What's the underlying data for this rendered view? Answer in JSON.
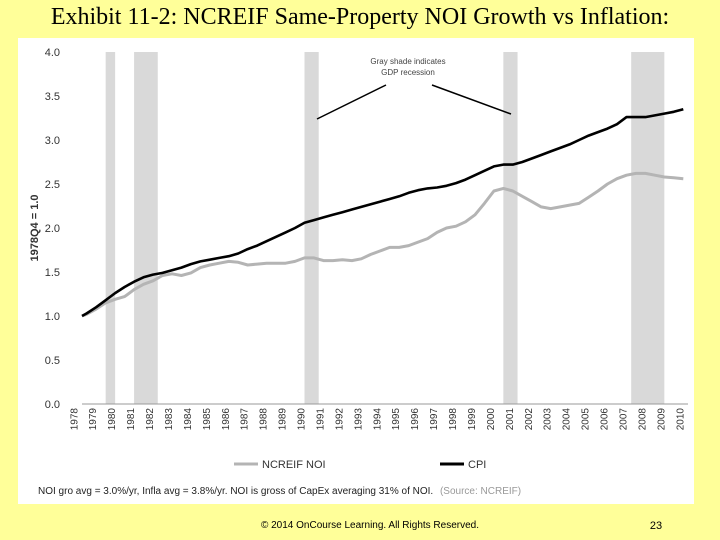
{
  "slide": {
    "title": "Exhibit 11-2: NCREIF Same-Property NOI Growth vs Inflation:",
    "footnote": "NOI gro avg = 3.0%/yr, Infla avg = 3.8%/yr. NOI is gross of CapEx averaging 31% of NOI.",
    "source": "(Source: NCREIF)",
    "copyright": "© 2014 OnCourse Learning. All Rights Reserved.",
    "page_number": "23"
  },
  "chart_data": {
    "type": "line",
    "ylabel": "1978Q4 = 1.0",
    "ylim": [
      0,
      4.0
    ],
    "yticks": [
      "0.0",
      "0.5",
      "1.0",
      "1.5",
      "2.0",
      "2.5",
      "3.0",
      "3.5",
      "4.0"
    ],
    "xlim": [
      1978.75,
      2010.75
    ],
    "xticks": [
      "1978",
      "1979",
      "1980",
      "1981",
      "1982",
      "1983",
      "1984",
      "1985",
      "1986",
      "1987",
      "1988",
      "1989",
      "1990",
      "1991",
      "1992",
      "1993",
      "1994",
      "1995",
      "1996",
      "1997",
      "1998",
      "1999",
      "2000",
      "2001",
      "2002",
      "2003",
      "2004",
      "2005",
      "2006",
      "2007",
      "2008",
      "2009",
      "2010"
    ],
    "grid": false,
    "legend_position": "bottom",
    "annotation": "Gray shade indicates GDP recession",
    "recessions": [
      [
        1980.0,
        1980.5
      ],
      [
        1981.5,
        1982.75
      ],
      [
        1990.5,
        1991.25
      ],
      [
        2001.0,
        2001.75
      ],
      [
        2007.75,
        2009.5
      ]
    ],
    "series": [
      {
        "name": "NCREIF NOI",
        "color": "#b4b4b4",
        "x": [
          1978.75,
          1979.0,
          1979.5,
          1980.0,
          1980.5,
          1981.0,
          1981.5,
          1982.0,
          1982.5,
          1983.0,
          1983.5,
          1984.0,
          1984.5,
          1985.0,
          1985.5,
          1986.0,
          1986.5,
          1987.0,
          1987.5,
          1988.0,
          1988.5,
          1989.0,
          1989.5,
          1990.0,
          1990.5,
          1991.0,
          1991.5,
          1992.0,
          1992.5,
          1993.0,
          1993.5,
          1994.0,
          1994.5,
          1995.0,
          1995.5,
          1996.0,
          1996.5,
          1997.0,
          1997.5,
          1998.0,
          1998.5,
          1999.0,
          1999.5,
          2000.0,
          2000.5,
          2001.0,
          2001.5,
          2002.0,
          2002.5,
          2003.0,
          2003.5,
          2004.0,
          2004.5,
          2005.0,
          2005.5,
          2006.0,
          2006.5,
          2007.0,
          2007.5,
          2008.0,
          2008.5,
          2009.0,
          2009.5,
          2010.0,
          2010.5
        ],
        "values": [
          1.0,
          1.02,
          1.08,
          1.15,
          1.19,
          1.22,
          1.3,
          1.36,
          1.4,
          1.46,
          1.48,
          1.46,
          1.49,
          1.55,
          1.58,
          1.6,
          1.62,
          1.61,
          1.58,
          1.59,
          1.6,
          1.6,
          1.6,
          1.62,
          1.66,
          1.66,
          1.63,
          1.63,
          1.64,
          1.63,
          1.65,
          1.7,
          1.74,
          1.78,
          1.78,
          1.8,
          1.84,
          1.88,
          1.95,
          2.0,
          2.02,
          2.07,
          2.15,
          2.28,
          2.42,
          2.45,
          2.42,
          2.36,
          2.3,
          2.24,
          2.22,
          2.24,
          2.26,
          2.28,
          2.35,
          2.42,
          2.5,
          2.56,
          2.6,
          2.62,
          2.62,
          2.6,
          2.58,
          2.57,
          2.56
        ]
      },
      {
        "name": "CPI",
        "color": "#000000",
        "x": [
          1978.75,
          1979.0,
          1979.5,
          1980.0,
          1980.5,
          1981.0,
          1981.5,
          1982.0,
          1982.5,
          1983.0,
          1983.5,
          1984.0,
          1984.5,
          1985.0,
          1985.5,
          1986.0,
          1986.5,
          1987.0,
          1987.5,
          1988.0,
          1988.5,
          1989.0,
          1989.5,
          1990.0,
          1990.5,
          1991.0,
          1991.5,
          1992.0,
          1992.5,
          1993.0,
          1993.5,
          1994.0,
          1994.5,
          1995.0,
          1995.5,
          1996.0,
          1996.5,
          1997.0,
          1997.5,
          1998.0,
          1998.5,
          1999.0,
          1999.5,
          2000.0,
          2000.5,
          2001.0,
          2001.5,
          2002.0,
          2002.5,
          2003.0,
          2003.5,
          2004.0,
          2004.5,
          2005.0,
          2005.5,
          2006.0,
          2006.5,
          2007.0,
          2007.5,
          2008.0,
          2008.5,
          2009.0,
          2009.5,
          2010.0,
          2010.5
        ],
        "values": [
          1.0,
          1.03,
          1.1,
          1.18,
          1.26,
          1.33,
          1.39,
          1.44,
          1.47,
          1.49,
          1.52,
          1.55,
          1.59,
          1.62,
          1.64,
          1.66,
          1.68,
          1.71,
          1.76,
          1.8,
          1.85,
          1.9,
          1.95,
          2.0,
          2.06,
          2.09,
          2.12,
          2.15,
          2.18,
          2.21,
          2.24,
          2.27,
          2.3,
          2.33,
          2.36,
          2.4,
          2.43,
          2.45,
          2.46,
          2.48,
          2.51,
          2.55,
          2.6,
          2.65,
          2.7,
          2.72,
          2.72,
          2.75,
          2.79,
          2.83,
          2.87,
          2.91,
          2.95,
          3.0,
          3.05,
          3.09,
          3.13,
          3.18,
          3.26,
          3.26,
          3.26,
          3.28,
          3.3,
          3.32,
          3.35
        ]
      }
    ]
  }
}
